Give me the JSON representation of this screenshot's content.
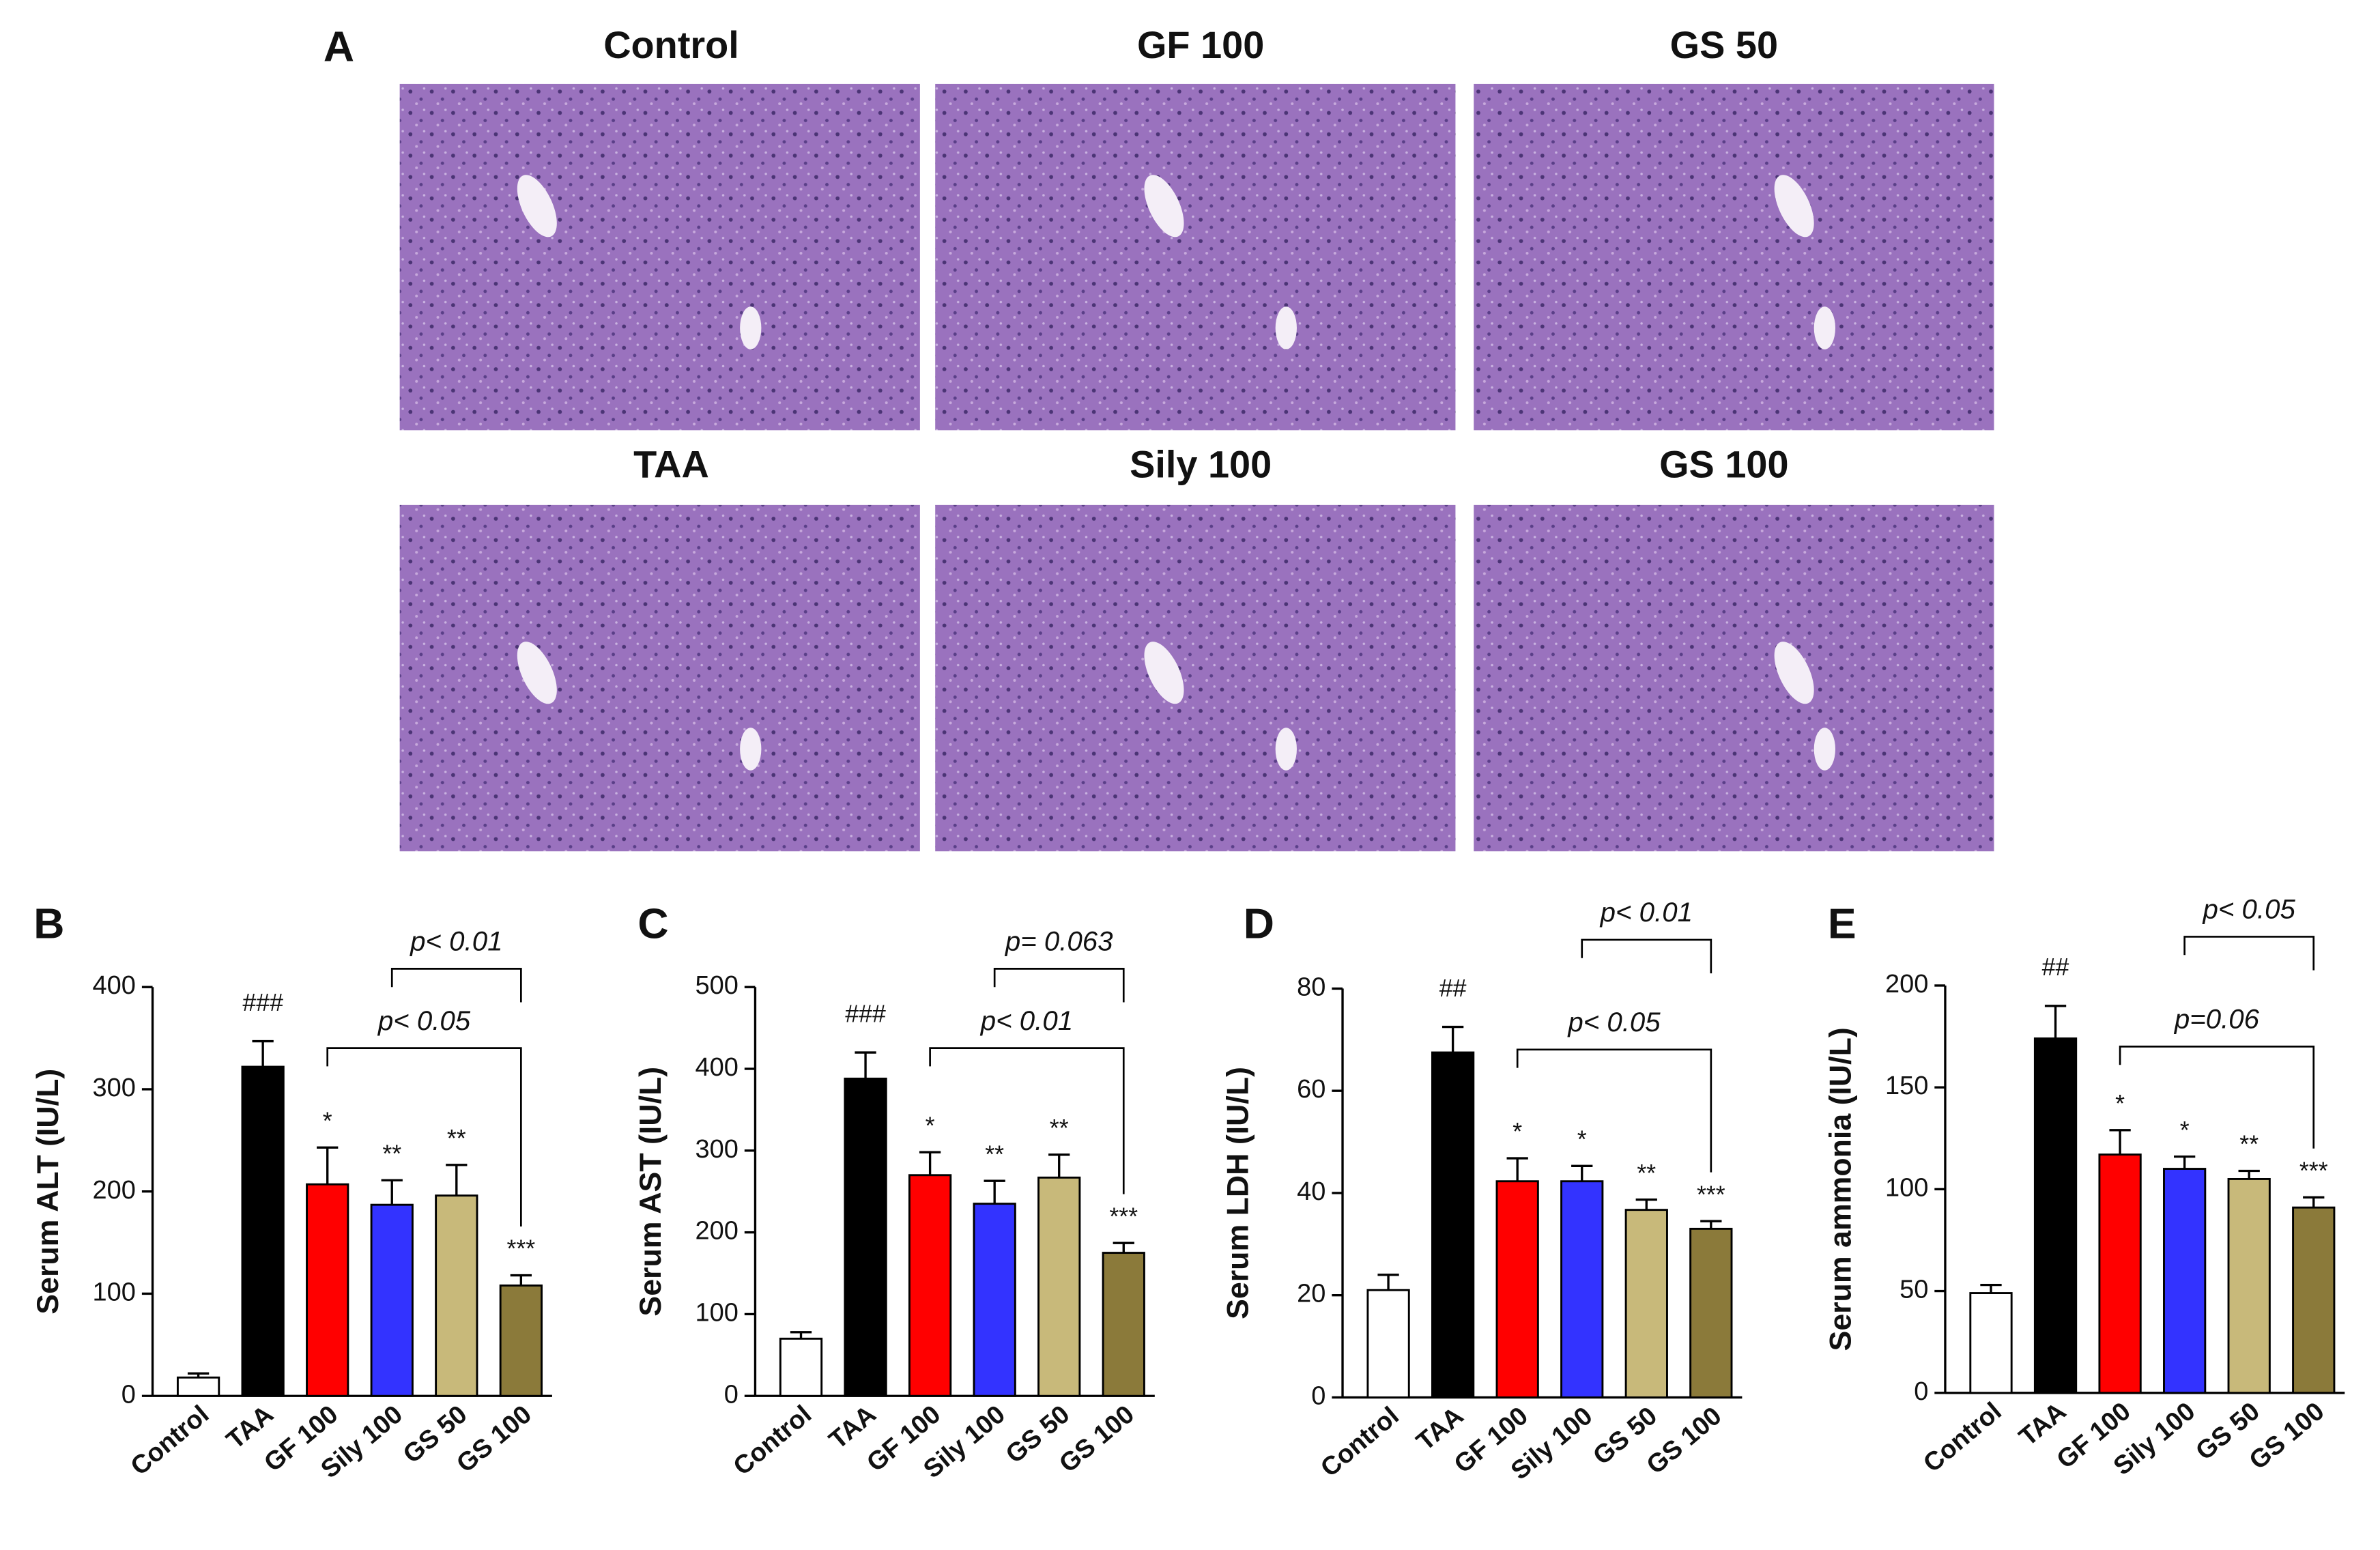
{
  "panel_a": {
    "label": "A",
    "images": [
      {
        "title": "Control"
      },
      {
        "title": "GF 100"
      },
      {
        "title": "GS 50"
      },
      {
        "title": "TAA"
      },
      {
        "title": "Sily 100"
      },
      {
        "title": "GS 100"
      }
    ]
  },
  "chart_data": [
    {
      "type": "bar",
      "panel_label": "B",
      "ylabel": "Serum ALT (IU/L)",
      "categories": [
        "Control",
        "TAA",
        "GF 100",
        "Sily 100",
        "GS 50",
        "GS 100"
      ],
      "values": [
        18,
        322,
        207,
        187,
        196,
        108
      ],
      "errors": [
        4,
        25,
        36,
        24,
        30,
        10
      ],
      "colors": [
        "#ffffff",
        "#000000",
        "#ff0000",
        "#3333ff",
        "#c8b97a",
        "#8b7a3a"
      ],
      "annotations": [
        null,
        "###",
        "*",
        "**",
        "**",
        "***"
      ],
      "ylim": [
        0,
        400
      ],
      "yticks": [
        0,
        100,
        200,
        300,
        400
      ],
      "comparisons": [
        {
          "label": "p< 0.05",
          "between": [
            "GF 100",
            "GS 100"
          ]
        },
        {
          "label": "p< 0.01",
          "between": [
            "Sily 100",
            "GS 100"
          ]
        }
      ]
    },
    {
      "type": "bar",
      "panel_label": "C",
      "ylabel": "Serum AST (IU/L)",
      "categories": [
        "Control",
        "TAA",
        "GF 100",
        "Sily 100",
        "GS 50",
        "GS 100"
      ],
      "values": [
        70,
        388,
        270,
        235,
        267,
        175
      ],
      "errors": [
        8,
        32,
        28,
        28,
        28,
        12
      ],
      "colors": [
        "#ffffff",
        "#000000",
        "#ff0000",
        "#3333ff",
        "#c8b97a",
        "#8b7a3a"
      ],
      "annotations": [
        null,
        "###",
        "*",
        "**",
        "**",
        "***"
      ],
      "ylim": [
        0,
        500
      ],
      "yticks": [
        0,
        100,
        200,
        300,
        400,
        500
      ],
      "comparisons": [
        {
          "label": "p< 0.01",
          "between": [
            "GF 100",
            "GS 100"
          ]
        },
        {
          "label": "p= 0.063",
          "between": [
            "Sily 100",
            "GS 100"
          ]
        }
      ]
    },
    {
      "type": "bar",
      "panel_label": "D",
      "ylabel": "Serum LDH (IU/L)",
      "categories": [
        "Control",
        "TAA",
        "GF 100",
        "Sily 100",
        "GS 50",
        "GS 100"
      ],
      "values": [
        21,
        67.5,
        42.3,
        42.3,
        36.7,
        33
      ],
      "errors": [
        3,
        5,
        4.5,
        3,
        2,
        1.5
      ],
      "colors": [
        "#ffffff",
        "#000000",
        "#ff0000",
        "#3333ff",
        "#c8b97a",
        "#8b7a3a"
      ],
      "annotations": [
        null,
        "##",
        "*",
        "*",
        "**",
        "***"
      ],
      "ylim": [
        0,
        80
      ],
      "yticks": [
        0,
        20,
        40,
        60,
        80
      ],
      "comparisons": [
        {
          "label": "p< 0.05",
          "between": [
            "GF 100",
            "GS 100"
          ]
        },
        {
          "label": "p< 0.01",
          "between": [
            "Sily 100",
            "GS 100"
          ]
        }
      ]
    },
    {
      "type": "bar",
      "panel_label": "E",
      "ylabel": "Serum ammonia (IU/L)",
      "categories": [
        "Control",
        "TAA",
        "GF 100",
        "Sily 100",
        "GS 50",
        "GS 100"
      ],
      "values": [
        49,
        174,
        117,
        110,
        105,
        91
      ],
      "errors": [
        4,
        16,
        12,
        6,
        4,
        5
      ],
      "colors": [
        "#ffffff",
        "#000000",
        "#ff0000",
        "#3333ff",
        "#c8b97a",
        "#8b7a3a"
      ],
      "annotations": [
        null,
        "##",
        "*",
        "*",
        "**",
        "***"
      ],
      "ylim": [
        0,
        200
      ],
      "yticks": [
        0,
        50,
        100,
        150,
        200
      ],
      "comparisons": [
        {
          "label": "p=0.06",
          "between": [
            "GF 100",
            "GS 100"
          ]
        },
        {
          "label": "p< 0.05",
          "between": [
            "Sily 100",
            "GS 100"
          ]
        }
      ]
    }
  ]
}
